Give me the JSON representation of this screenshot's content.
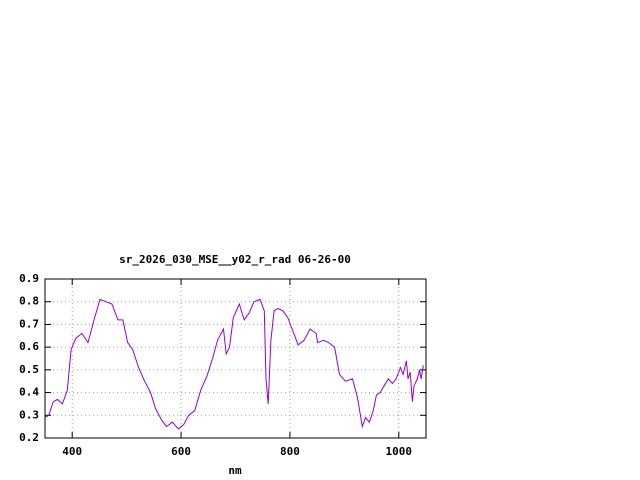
{
  "chart_data": {
    "type": "line",
    "title": "sr_2026_030_MSE__y02_r_rad 06-26-00",
    "x_label": "nm",
    "xlim": [
      350,
      1050
    ],
    "xticks": [
      400,
      600,
      800,
      1000
    ],
    "ylim": [
      0.2,
      0.9
    ],
    "yticks": [
      0.2,
      0.3,
      0.4,
      0.5,
      0.6,
      0.7,
      0.8,
      0.9
    ],
    "grid": true,
    "series": [
      {
        "color": "#9400d3",
        "x": [
          350,
          357,
          365,
          373,
          382,
          391,
          398,
          407,
          418,
          429,
          440,
          451,
          462,
          473,
          484,
          493,
          502,
          511,
          522,
          533,
          544,
          553,
          564,
          573,
          584,
          595,
          605,
          614,
          625,
          636,
          647,
          658,
          667,
          678,
          683,
          689,
          696,
          707,
          716,
          725,
          734,
          745,
          753,
          756,
          760,
          765,
          771,
          778,
          787,
          796,
          804,
          815,
          826,
          837,
          848,
          851,
          862,
          871,
          882,
          891,
          902,
          915,
          924,
          933,
          939,
          946,
          953,
          959,
          966,
          973,
          981,
          988,
          995,
          1003,
          1008,
          1014,
          1017,
          1021,
          1025,
          1028,
          1034,
          1038,
          1041,
          1045
        ],
        "values": [
          0.29,
          0.3,
          0.36,
          0.37,
          0.35,
          0.41,
          0.59,
          0.64,
          0.66,
          0.62,
          0.72,
          0.81,
          0.8,
          0.79,
          0.72,
          0.72,
          0.62,
          0.59,
          0.51,
          0.45,
          0.4,
          0.33,
          0.28,
          0.25,
          0.27,
          0.24,
          0.26,
          0.3,
          0.32,
          0.41,
          0.47,
          0.55,
          0.63,
          0.68,
          0.57,
          0.6,
          0.73,
          0.79,
          0.72,
          0.75,
          0.8,
          0.81,
          0.76,
          0.46,
          0.35,
          0.63,
          0.76,
          0.77,
          0.76,
          0.73,
          0.68,
          0.61,
          0.63,
          0.68,
          0.66,
          0.62,
          0.63,
          0.62,
          0.6,
          0.48,
          0.45,
          0.46,
          0.38,
          0.25,
          0.29,
          0.27,
          0.32,
          0.39,
          0.4,
          0.43,
          0.46,
          0.44,
          0.46,
          0.51,
          0.48,
          0.54,
          0.46,
          0.49,
          0.36,
          0.43,
          0.46,
          0.5,
          0.46,
          0.52
        ]
      }
    ]
  }
}
